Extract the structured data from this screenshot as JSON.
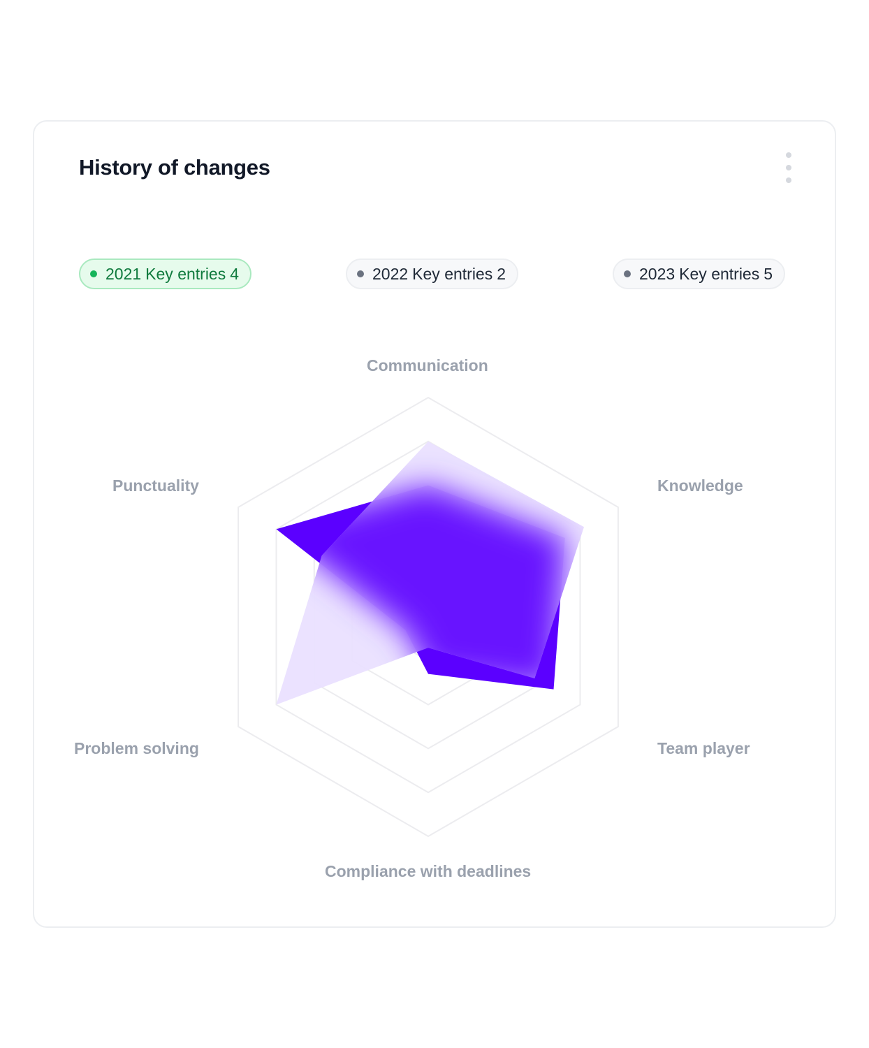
{
  "card": {
    "title": "History of changes",
    "menu_icon": "more-vertical-icon"
  },
  "years": [
    {
      "year": "2021",
      "label": "Key entries",
      "count": "4",
      "active": true
    },
    {
      "year": "2022",
      "label": "Key entries",
      "count": "2",
      "active": false
    },
    {
      "year": "2023",
      "label": "Key entries",
      "count": "5",
      "active": false
    }
  ],
  "colors": {
    "primary_series": "#5b00ff",
    "secondary_series": "#e9e0ff",
    "active_pill_bg": "#e6fbec",
    "active_pill_text": "#0f7a3d",
    "active_dot": "#16b45a",
    "grid": "#ececef",
    "axis_label": "#9aa1ad"
  },
  "chart_data": {
    "type": "radar",
    "axes": [
      "Communication",
      "Knowledge",
      "Team player",
      "Compliance with deadlines",
      "Problem solving",
      "Punctuality"
    ],
    "scale_max": 5,
    "grid_levels": 5,
    "grid": true,
    "series": [
      {
        "values": [
          3.0,
          3.6,
          3.3,
          1.3,
          0.6,
          4.0
        ],
        "color": "#5b00ff"
      },
      {
        "values": [
          4.0,
          4.1,
          2.8,
          0.7,
          4.0,
          2.8
        ],
        "color": "#e9e0ff"
      }
    ]
  }
}
